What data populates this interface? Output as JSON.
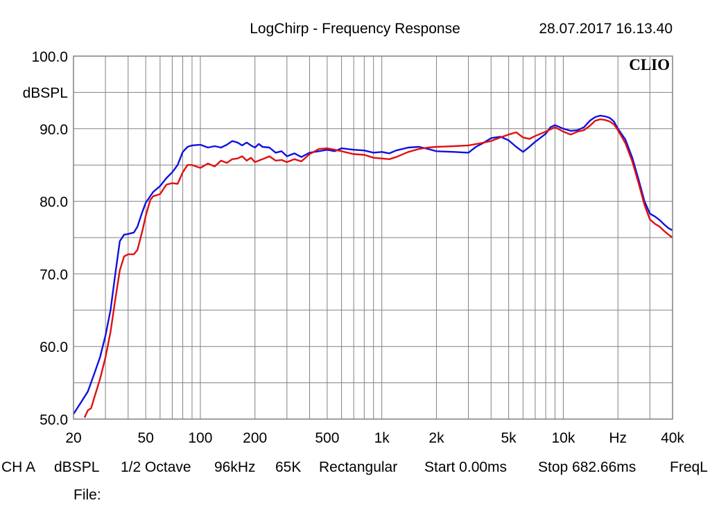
{
  "header": {
    "title": "LogChirp - Frequency Response",
    "timestamp": "28.07.2017 16.13.40"
  },
  "brand": "CLIO",
  "footer": {
    "items": [
      "CH A",
      "dBSPL",
      "1/2 Octave",
      "96kHz",
      "65K",
      "Rectangular",
      "Start 0.00ms",
      "Stop 682.66ms",
      "FreqL"
    ],
    "file_label": "File:"
  },
  "colors": {
    "series_blue": "#1010e0",
    "series_red": "#e01010",
    "grid": "#808080",
    "frame": "#808080"
  },
  "chart_data": {
    "type": "line",
    "x_scale": "log",
    "xlim": [
      20,
      40000
    ],
    "ylim": [
      50,
      100
    ],
    "ylabel": "dBSPL",
    "y_ticks": [
      {
        "value": 100,
        "label": "100.0"
      },
      {
        "value": 90,
        "label": "90.0"
      },
      {
        "value": 80,
        "label": "80.0"
      },
      {
        "value": 70,
        "label": "70.0"
      },
      {
        "value": 60,
        "label": "60.0"
      },
      {
        "value": 50,
        "label": "50.0"
      }
    ],
    "x_ticks": [
      {
        "value": 20,
        "label": "20"
      },
      {
        "value": 50,
        "label": "50"
      },
      {
        "value": 100,
        "label": "100"
      },
      {
        "value": 200,
        "label": "200"
      },
      {
        "value": 500,
        "label": "500"
      },
      {
        "value": 1000,
        "label": "1k"
      },
      {
        "value": 2000,
        "label": "2k"
      },
      {
        "value": 5000,
        "label": "5k"
      },
      {
        "value": 10000,
        "label": "10k"
      },
      {
        "value": 20000,
        "label": "Hz"
      },
      {
        "value": 40000,
        "label": "40k"
      }
    ],
    "grid": true,
    "series": [
      {
        "color": "#1010e0",
        "points": [
          [
            20,
            50.7
          ],
          [
            22,
            52.3
          ],
          [
            24,
            53.8
          ],
          [
            26,
            56.2
          ],
          [
            28,
            58.5
          ],
          [
            30,
            61.5
          ],
          [
            32,
            65.0
          ],
          [
            34,
            70.0
          ],
          [
            36,
            74.5
          ],
          [
            38,
            75.4
          ],
          [
            40,
            75.5
          ],
          [
            43,
            75.7
          ],
          [
            45,
            76.5
          ],
          [
            48,
            78.6
          ],
          [
            50,
            79.8
          ],
          [
            55,
            81.3
          ],
          [
            60,
            82.1
          ],
          [
            65,
            83.2
          ],
          [
            70,
            84.0
          ],
          [
            75,
            85.0
          ],
          [
            80,
            86.8
          ],
          [
            85,
            87.5
          ],
          [
            90,
            87.7
          ],
          [
            100,
            87.8
          ],
          [
            110,
            87.4
          ],
          [
            120,
            87.6
          ],
          [
            130,
            87.4
          ],
          [
            140,
            87.8
          ],
          [
            150,
            88.3
          ],
          [
            160,
            88.1
          ],
          [
            170,
            87.7
          ],
          [
            180,
            88.1
          ],
          [
            190,
            87.7
          ],
          [
            200,
            87.4
          ],
          [
            210,
            87.9
          ],
          [
            220,
            87.5
          ],
          [
            240,
            87.4
          ],
          [
            260,
            86.7
          ],
          [
            280,
            86.9
          ],
          [
            300,
            86.2
          ],
          [
            330,
            86.6
          ],
          [
            360,
            86.1
          ],
          [
            400,
            86.7
          ],
          [
            450,
            86.9
          ],
          [
            500,
            87.1
          ],
          [
            550,
            86.9
          ],
          [
            600,
            87.3
          ],
          [
            700,
            87.1
          ],
          [
            800,
            87.0
          ],
          [
            900,
            86.7
          ],
          [
            1000,
            86.8
          ],
          [
            1100,
            86.6
          ],
          [
            1200,
            87.0
          ],
          [
            1400,
            87.4
          ],
          [
            1600,
            87.5
          ],
          [
            1800,
            87.2
          ],
          [
            2000,
            86.9
          ],
          [
            2500,
            86.8
          ],
          [
            3000,
            86.7
          ],
          [
            3300,
            87.5
          ],
          [
            3600,
            88.0
          ],
          [
            4000,
            88.7
          ],
          [
            4500,
            88.9
          ],
          [
            5000,
            88.4
          ],
          [
            5500,
            87.5
          ],
          [
            6000,
            86.8
          ],
          [
            6500,
            87.5
          ],
          [
            7000,
            88.2
          ],
          [
            8000,
            89.3
          ],
          [
            8500,
            90.2
          ],
          [
            9000,
            90.5
          ],
          [
            10000,
            90.0
          ],
          [
            11000,
            89.7
          ],
          [
            12000,
            89.8
          ],
          [
            13000,
            90.2
          ],
          [
            14000,
            91.1
          ],
          [
            15000,
            91.6
          ],
          [
            16000,
            91.8
          ],
          [
            17000,
            91.7
          ],
          [
            18000,
            91.5
          ],
          [
            19000,
            91.0
          ],
          [
            20000,
            90.0
          ],
          [
            22000,
            88.5
          ],
          [
            24000,
            86.0
          ],
          [
            26000,
            83.0
          ],
          [
            28000,
            80.0
          ],
          [
            30000,
            78.3
          ],
          [
            32000,
            77.9
          ],
          [
            34000,
            77.4
          ],
          [
            36000,
            76.8
          ],
          [
            38000,
            76.3
          ],
          [
            40000,
            76.0
          ]
        ]
      },
      {
        "color": "#e01010",
        "points": [
          [
            23,
            50.2
          ],
          [
            24,
            51.2
          ],
          [
            25,
            51.5
          ],
          [
            26,
            52.9
          ],
          [
            28,
            55.5
          ],
          [
            30,
            58.5
          ],
          [
            32,
            62.0
          ],
          [
            34,
            66.5
          ],
          [
            36,
            70.5
          ],
          [
            38,
            72.4
          ],
          [
            40,
            72.7
          ],
          [
            43,
            72.7
          ],
          [
            45,
            73.3
          ],
          [
            48,
            76.0
          ],
          [
            50,
            78.0
          ],
          [
            53,
            80.2
          ],
          [
            55,
            80.7
          ],
          [
            60,
            81.0
          ],
          [
            65,
            82.3
          ],
          [
            70,
            82.5
          ],
          [
            75,
            82.4
          ],
          [
            80,
            84.0
          ],
          [
            85,
            85.0
          ],
          [
            90,
            85.0
          ],
          [
            100,
            84.6
          ],
          [
            110,
            85.2
          ],
          [
            120,
            84.8
          ],
          [
            130,
            85.6
          ],
          [
            140,
            85.3
          ],
          [
            150,
            85.8
          ],
          [
            160,
            85.9
          ],
          [
            170,
            86.2
          ],
          [
            180,
            85.6
          ],
          [
            190,
            86.0
          ],
          [
            200,
            85.4
          ],
          [
            220,
            85.8
          ],
          [
            240,
            86.2
          ],
          [
            260,
            85.6
          ],
          [
            280,
            85.7
          ],
          [
            300,
            85.4
          ],
          [
            330,
            85.8
          ],
          [
            360,
            85.5
          ],
          [
            400,
            86.5
          ],
          [
            450,
            87.2
          ],
          [
            500,
            87.3
          ],
          [
            550,
            87.1
          ],
          [
            600,
            86.9
          ],
          [
            700,
            86.5
          ],
          [
            800,
            86.4
          ],
          [
            900,
            86.0
          ],
          [
            1000,
            85.9
          ],
          [
            1100,
            85.8
          ],
          [
            1200,
            86.1
          ],
          [
            1400,
            86.8
          ],
          [
            1600,
            87.2
          ],
          [
            1800,
            87.4
          ],
          [
            2000,
            87.5
          ],
          [
            2500,
            87.6
          ],
          [
            3000,
            87.7
          ],
          [
            3500,
            88.0
          ],
          [
            4000,
            88.3
          ],
          [
            4500,
            88.8
          ],
          [
            5000,
            89.2
          ],
          [
            5500,
            89.5
          ],
          [
            6000,
            88.8
          ],
          [
            6500,
            88.6
          ],
          [
            7000,
            89.0
          ],
          [
            8000,
            89.6
          ],
          [
            9000,
            90.2
          ],
          [
            10000,
            89.6
          ],
          [
            11000,
            89.2
          ],
          [
            12000,
            89.6
          ],
          [
            13000,
            89.8
          ],
          [
            14000,
            90.4
          ],
          [
            15000,
            91.1
          ],
          [
            16000,
            91.3
          ],
          [
            17000,
            91.2
          ],
          [
            18000,
            91.0
          ],
          [
            19000,
            90.6
          ],
          [
            20000,
            89.8
          ],
          [
            22000,
            88.0
          ],
          [
            24000,
            85.5
          ],
          [
            26000,
            82.5
          ],
          [
            28000,
            79.5
          ],
          [
            30000,
            77.5
          ],
          [
            32000,
            76.9
          ],
          [
            34000,
            76.5
          ],
          [
            36000,
            75.9
          ],
          [
            38000,
            75.4
          ],
          [
            40000,
            75.0
          ]
        ]
      }
    ]
  }
}
